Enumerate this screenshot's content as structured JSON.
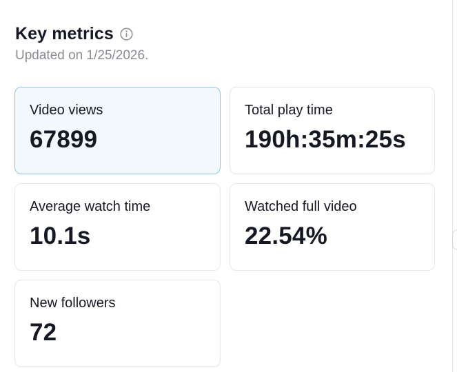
{
  "header": {
    "title": "Key metrics",
    "info_icon": "info-circle-icon",
    "updated": "Updated on 1/25/2026."
  },
  "colors": {
    "text": "#161823",
    "muted": "#8a8b91",
    "card_border": "#e6e6ea",
    "selected_bg": "#f2f9fd",
    "selected_border": "#8fc6e4"
  },
  "metrics": [
    {
      "label": "Video views",
      "value": "67899",
      "selected": true
    },
    {
      "label": "Total play time",
      "value": "190h:35m:25s",
      "selected": false
    },
    {
      "label": "Average watch time",
      "value": "10.1s",
      "selected": false
    },
    {
      "label": "Watched full video",
      "value": "22.54%",
      "selected": false
    },
    {
      "label": "New followers",
      "value": "72",
      "selected": false
    }
  ]
}
